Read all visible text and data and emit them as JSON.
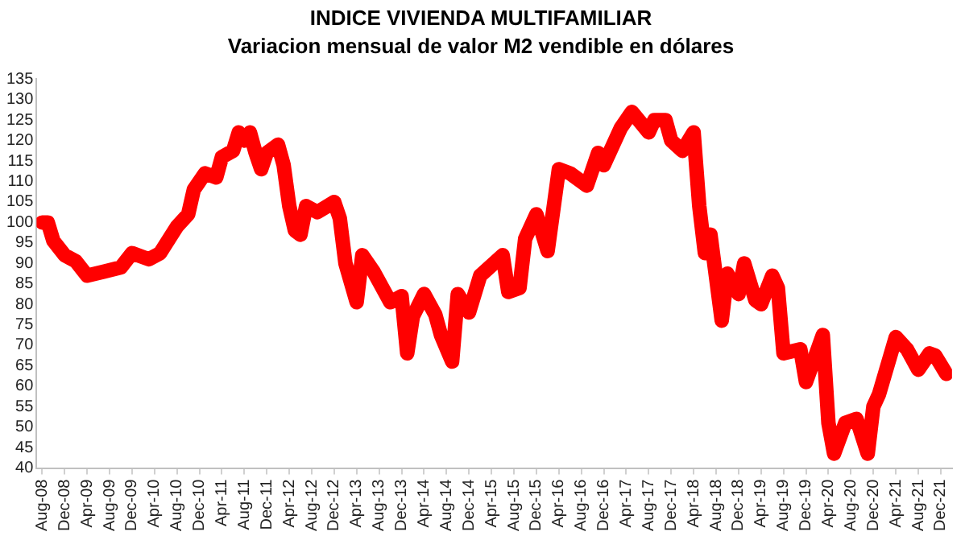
{
  "chart_data": {
    "type": "line",
    "title": "INDICE VIVIENDA MULTIFAMILIAR",
    "subtitle": "Variacion mensual de valor M2 vendible en dólares",
    "series": [
      {
        "color": "#ff0000",
        "x": [
          "2008-08",
          "2008-09",
          "2008-10",
          "2008-12",
          "2009-02",
          "2009-04",
          "2009-07",
          "2009-10",
          "2009-12",
          "2010-03",
          "2010-05",
          "2010-08",
          "2010-10",
          "2010-11",
          "2011-01",
          "2011-03",
          "2011-04",
          "2011-06",
          "2011-07",
          "2011-08",
          "2011-09",
          "2011-10",
          "2011-11",
          "2011-12",
          "2012-02",
          "2012-03",
          "2012-04",
          "2012-05",
          "2012-06",
          "2012-07",
          "2012-09",
          "2012-12",
          "2013-01",
          "2013-02",
          "2013-04",
          "2013-05",
          "2013-07",
          "2013-10",
          "2013-12",
          "2014-01",
          "2014-02",
          "2014-04",
          "2014-06",
          "2014-07",
          "2014-09",
          "2014-10",
          "2014-12",
          "2015-02",
          "2015-06",
          "2015-07",
          "2015-09",
          "2015-10",
          "2015-12",
          "2016-02",
          "2016-04",
          "2016-06",
          "2016-09",
          "2016-11",
          "2016-12",
          "2017-03",
          "2017-05",
          "2017-08",
          "2017-09",
          "2017-11",
          "2017-12",
          "2018-02",
          "2018-04",
          "2018-05",
          "2018-06",
          "2018-07",
          "2018-09",
          "2018-10",
          "2018-12",
          "2019-01",
          "2019-03",
          "2019-04",
          "2019-06",
          "2019-07",
          "2019-08",
          "2019-11",
          "2019-12",
          "2020-03",
          "2020-04",
          "2020-05",
          "2020-07",
          "2020-09",
          "2020-11",
          "2020-12",
          "2021-01",
          "2021-04",
          "2021-06",
          "2021-08",
          "2021-10",
          "2021-11",
          "2022-01"
        ],
        "values": [
          100,
          100,
          95.5,
          92,
          90.5,
          87,
          88,
          89,
          92.5,
          91,
          92.5,
          99,
          102,
          108,
          112,
          111,
          116,
          117.5,
          122,
          120,
          122,
          117,
          113,
          117,
          119,
          114,
          104,
          98,
          97,
          104,
          102.5,
          105,
          101,
          90,
          80.5,
          92,
          88,
          80.5,
          82,
          68,
          77,
          82.5,
          77.5,
          72.5,
          66,
          82.5,
          78,
          87,
          92,
          83,
          84,
          96,
          102,
          93,
          113,
          112,
          109,
          117,
          114,
          123,
          127,
          122,
          125,
          125,
          120,
          117.5,
          122,
          104,
          92.5,
          97,
          76,
          87.5,
          82.5,
          90,
          81,
          80,
          87,
          84,
          68,
          69,
          61,
          72.5,
          51,
          43.5,
          51,
          52,
          43.5,
          55,
          58,
          72,
          69,
          64,
          68,
          67.5,
          63
        ]
      }
    ],
    "xlim": [
      "2008-07",
      "2022-02"
    ],
    "xticks": [
      {
        "value": "2008-08",
        "label": "Aug-08"
      },
      {
        "value": "2008-12",
        "label": "Dec-08"
      },
      {
        "value": "2009-04",
        "label": "Apr-09"
      },
      {
        "value": "2009-08",
        "label": "Aug-09"
      },
      {
        "value": "2009-12",
        "label": "Dec-09"
      },
      {
        "value": "2010-04",
        "label": "Apr-10"
      },
      {
        "value": "2010-08",
        "label": "Aug-10"
      },
      {
        "value": "2010-12",
        "label": "Dec-10"
      },
      {
        "value": "2011-04",
        "label": "Apr-11"
      },
      {
        "value": "2011-08",
        "label": "Aug-11"
      },
      {
        "value": "2011-12",
        "label": "Dec-11"
      },
      {
        "value": "2012-04",
        "label": "Apr-12"
      },
      {
        "value": "2012-08",
        "label": "Aug-12"
      },
      {
        "value": "2012-12",
        "label": "Dec-12"
      },
      {
        "value": "2013-04",
        "label": "Apr-13"
      },
      {
        "value": "2013-08",
        "label": "Aug-13"
      },
      {
        "value": "2013-12",
        "label": "Dec-13"
      },
      {
        "value": "2014-04",
        "label": "Apr-14"
      },
      {
        "value": "2014-08",
        "label": "Aug-14"
      },
      {
        "value": "2014-12",
        "label": "Dec-14"
      },
      {
        "value": "2015-04",
        "label": "Apr-15"
      },
      {
        "value": "2015-08",
        "label": "Aug-15"
      },
      {
        "value": "2015-12",
        "label": "Dec-15"
      },
      {
        "value": "2016-04",
        "label": "Apr-16"
      },
      {
        "value": "2016-08",
        "label": "Aug-16"
      },
      {
        "value": "2016-12",
        "label": "Dec-16"
      },
      {
        "value": "2017-04",
        "label": "Apr-17"
      },
      {
        "value": "2017-08",
        "label": "Aug-17"
      },
      {
        "value": "2017-12",
        "label": "Dec-17"
      },
      {
        "value": "2018-04",
        "label": "Apr-18"
      },
      {
        "value": "2018-08",
        "label": "Aug-18"
      },
      {
        "value": "2018-12",
        "label": "Dec-18"
      },
      {
        "value": "2019-04",
        "label": "Apr-19"
      },
      {
        "value": "2019-08",
        "label": "Aug-19"
      },
      {
        "value": "2019-12",
        "label": "Dec-19"
      },
      {
        "value": "2020-04",
        "label": "Apr-20"
      },
      {
        "value": "2020-08",
        "label": "Aug-20"
      },
      {
        "value": "2020-12",
        "label": "Dec-20"
      },
      {
        "value": "2021-04",
        "label": "Apr-21"
      },
      {
        "value": "2021-08",
        "label": "Aug-21"
      },
      {
        "value": "2021-12",
        "label": "Dec-21"
      }
    ],
    "ylim": [
      40,
      135
    ],
    "yticks": [
      40,
      45,
      50,
      55,
      60,
      65,
      70,
      75,
      80,
      85,
      90,
      95,
      100,
      105,
      110,
      115,
      120,
      125,
      130,
      135
    ],
    "grid": false,
    "legend": false
  }
}
